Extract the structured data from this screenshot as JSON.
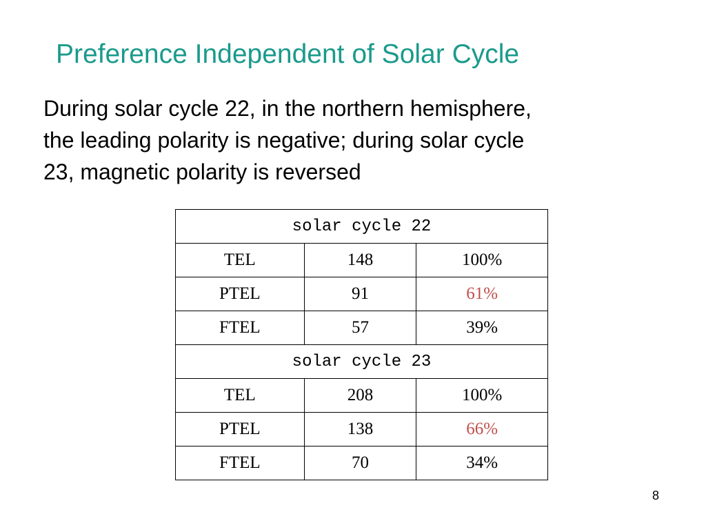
{
  "slide": {
    "title": "Preference Independent of Solar Cycle",
    "body_lines": [
      "During solar cycle 22, in the northern hemisphere,",
      "the leading polarity is negative; during solar cycle",
      "23, magnetic polarity is reversed"
    ],
    "page_number": "8"
  },
  "table": {
    "sections": [
      {
        "header": "solar cycle 22",
        "rows": [
          {
            "label": "TEL",
            "count": "148",
            "percent": "100%"
          },
          {
            "label": "PTEL",
            "count": "91",
            "percent": "61%"
          },
          {
            "label": "FTEL",
            "count": "57",
            "percent": "39%"
          }
        ]
      },
      {
        "header": "solar cycle 23",
        "rows": [
          {
            "label": "TEL",
            "count": "208",
            "percent": "100%"
          },
          {
            "label": "PTEL",
            "count": "138",
            "percent": "66%"
          },
          {
            "label": "FTEL",
            "count": "70",
            "percent": "34%"
          }
        ]
      }
    ]
  },
  "colors": {
    "title": "#1a9a8c",
    "highlight": "#c0504d",
    "text": "#000000",
    "background": "#ffffff"
  }
}
